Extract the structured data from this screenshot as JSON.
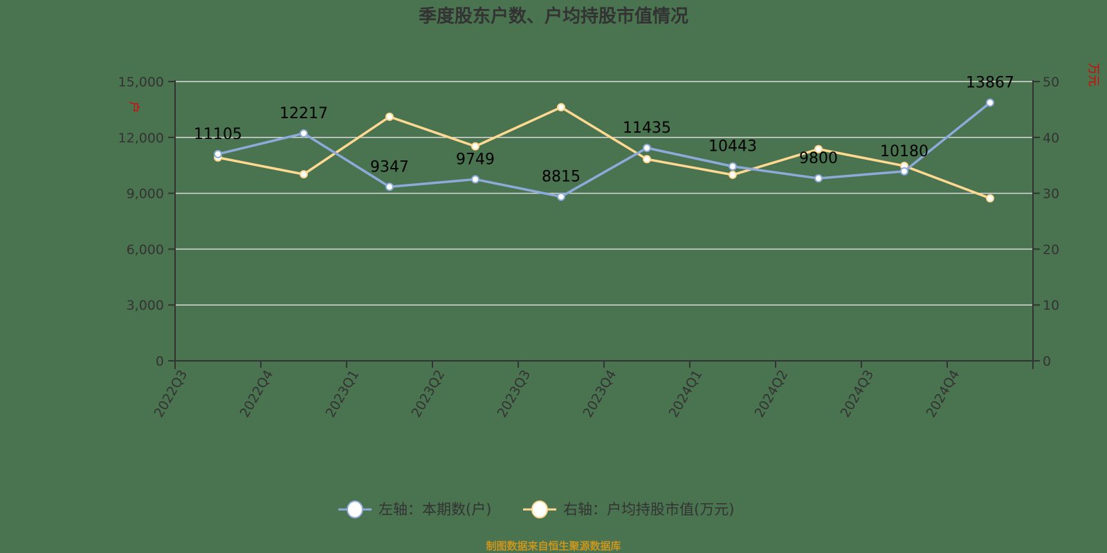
{
  "title": "季度股东户数、户均持股市值情况",
  "source_note": "制图数据来自恒生聚源数据库",
  "legend": {
    "left_series": "左轴：本期数(户)",
    "right_series": "右轴：户均持股市值(万元)"
  },
  "axes": {
    "left_unit": "户",
    "right_unit": "万元",
    "left_ticks": [
      "0",
      "3,000",
      "6,000",
      "9,000",
      "12,000",
      "15,000"
    ],
    "right_ticks": [
      "0",
      "10",
      "20",
      "30",
      "40",
      "50"
    ]
  },
  "colors": {
    "background": "#4a7350",
    "series_left": "#8eaadb",
    "series_right": "#ffd992",
    "grid": "#d9d9d9",
    "axis": "#333333",
    "unit_label": "#e00000",
    "source": "#c8951f"
  },
  "chart_data": {
    "type": "line",
    "title": "季度股东户数、户均持股市值情况",
    "categories": [
      "2022Q3",
      "2022Q4",
      "2023Q1",
      "2023Q2",
      "2023Q3",
      "2023Q4",
      "2024Q1",
      "2024Q2",
      "2024Q3",
      "2024Q4"
    ],
    "series": [
      {
        "name": "左轴：本期数(户)",
        "axis": "left",
        "values": [
          11105,
          12217,
          9347,
          9749,
          8815,
          11435,
          10443,
          9800,
          10180,
          13867
        ],
        "labels_shown": true
      },
      {
        "name": "右轴：户均持股市值(万元)",
        "axis": "right",
        "values": [
          36.4,
          33.4,
          43.7,
          38.4,
          45.4,
          36.1,
          33.3,
          37.9,
          34.9,
          29.1
        ],
        "labels_shown": false
      }
    ],
    "ylim_left": [
      0,
      15000
    ],
    "ylim_right": [
      0,
      50
    ],
    "ylabel_left": "户",
    "ylabel_right": "万元",
    "grid": true,
    "legend_position": "bottom"
  }
}
